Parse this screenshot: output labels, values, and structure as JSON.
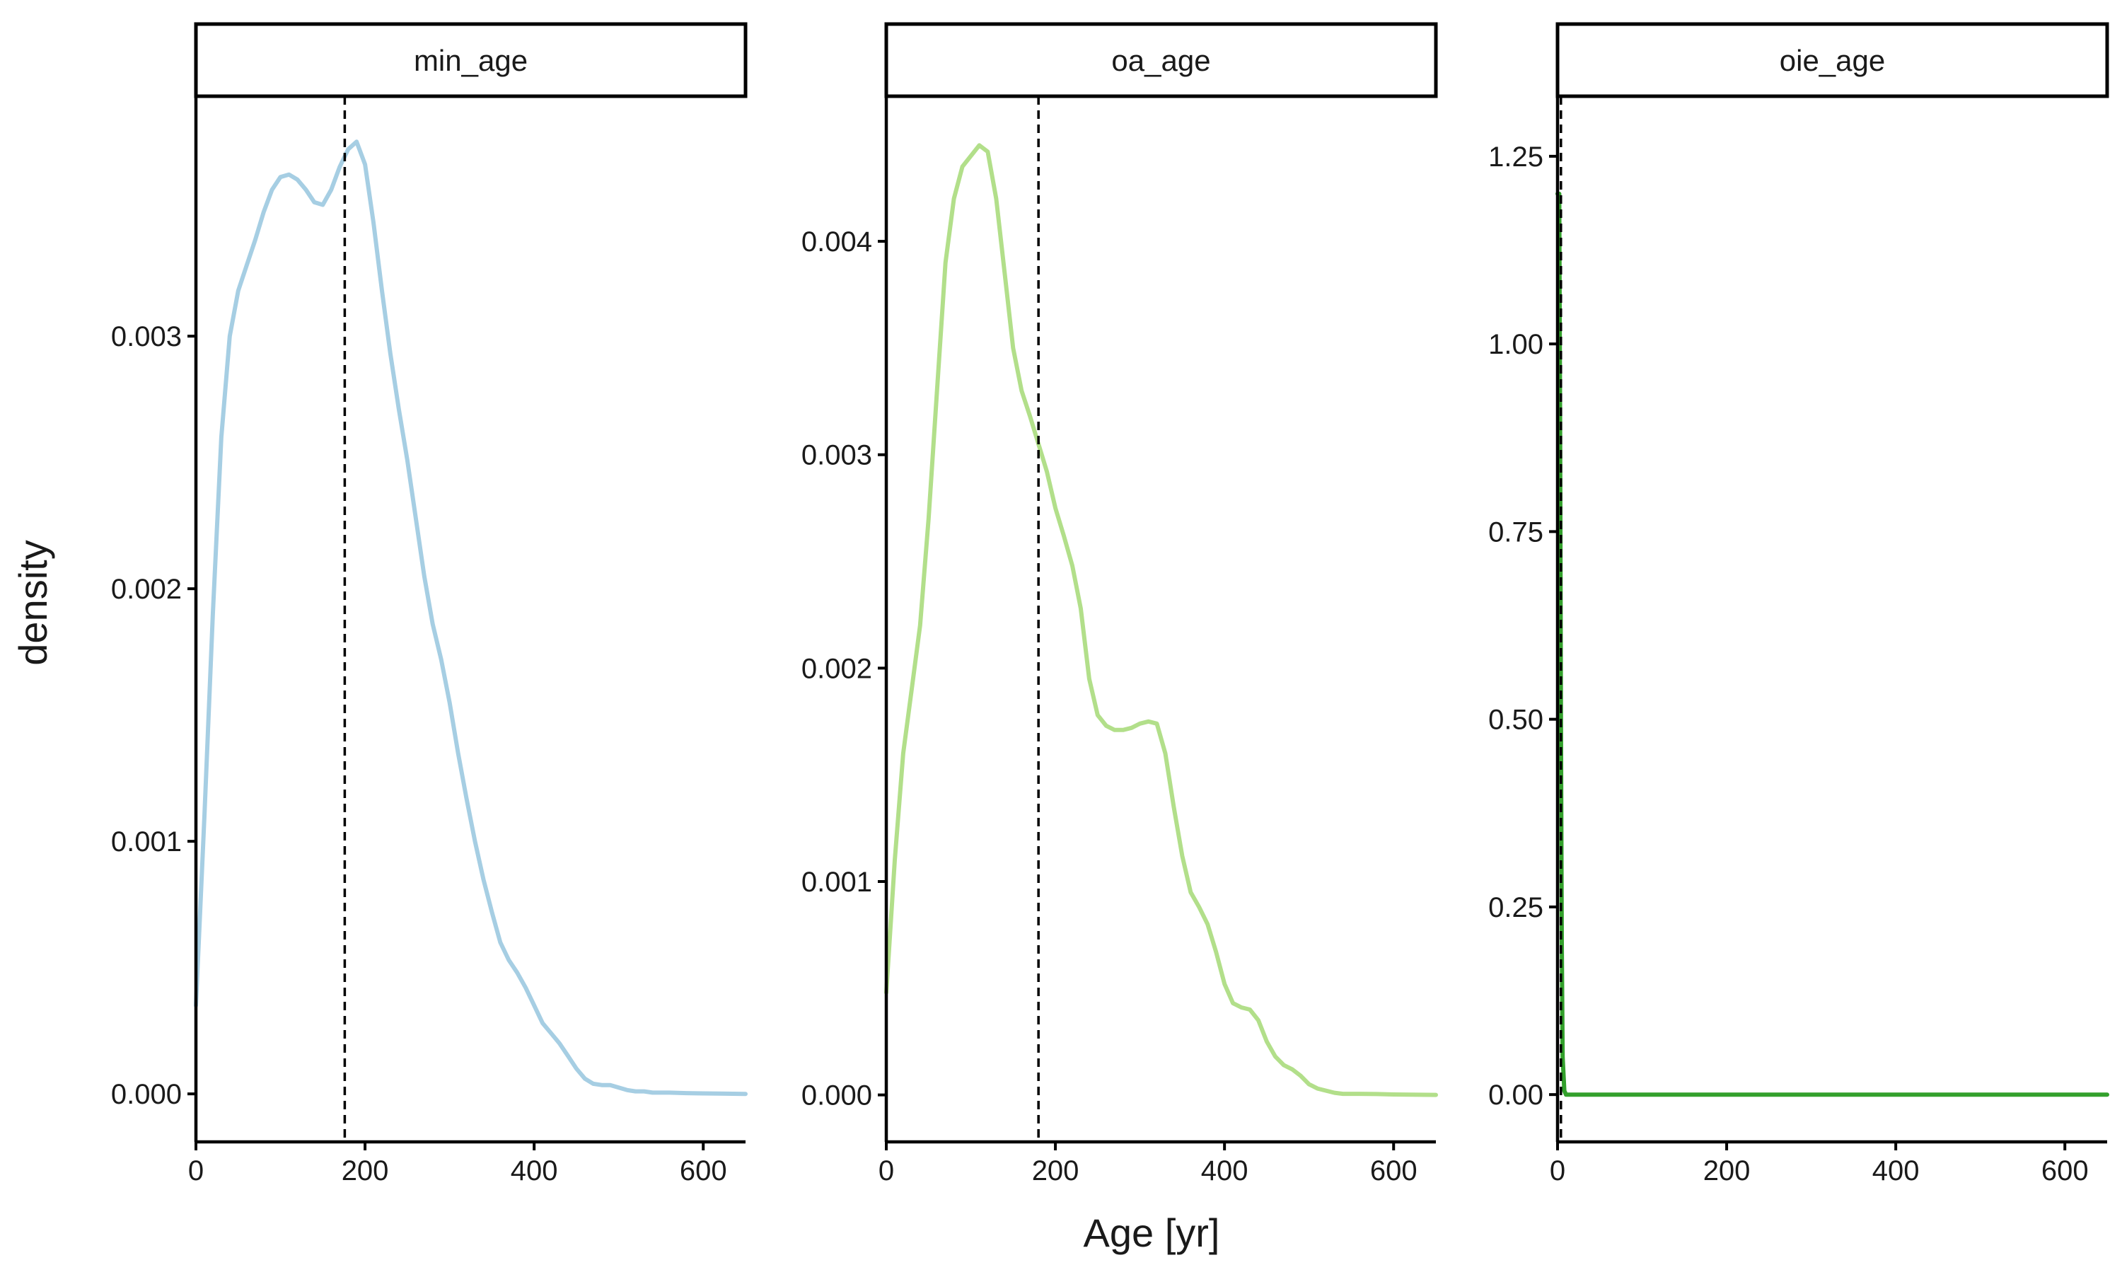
{
  "chart_data": {
    "type": "line",
    "title": "",
    "xlabel": "Age [yr]",
    "ylabel": "density",
    "grid": false,
    "legend": "none",
    "panels": [
      {
        "name": "min_age",
        "color": "#a6cee3",
        "xlim": [
          0,
          650
        ],
        "ylim": [
          -0.00019,
          0.00395
        ],
        "x_ticks": [
          0,
          200,
          400,
          600
        ],
        "x_tick_labels": [
          "0",
          "200",
          "400",
          "600"
        ],
        "y_ticks": [
          0,
          0.001,
          0.002,
          0.003
        ],
        "y_tick_labels": [
          "0.000",
          "0.001",
          "0.002",
          "0.003"
        ],
        "vline": 176,
        "series": [
          {
            "x": [
              0,
              10,
              20,
              30,
              40,
              50,
              60,
              70,
              80,
              90,
              100,
              110,
              120,
              130,
              140,
              150,
              160,
              170,
              180,
              190,
              200,
              210,
              220,
              230,
              240,
              250,
              260,
              270,
              280,
              290,
              300,
              310,
              320,
              330,
              340,
              350,
              360,
              370,
              380,
              390,
              400,
              410,
              420,
              430,
              440,
              450,
              460,
              470,
              480,
              490,
              500,
              510,
              520,
              530,
              540,
              560,
              580,
              600,
              620,
              650
            ],
            "y": [
              0.00035,
              0.0011,
              0.0019,
              0.0026,
              0.003,
              0.00318,
              0.00328,
              0.00338,
              0.00349,
              0.00358,
              0.00363,
              0.00364,
              0.00362,
              0.00358,
              0.00353,
              0.00352,
              0.00358,
              0.00367,
              0.00374,
              0.00377,
              0.00368,
              0.00345,
              0.00318,
              0.00293,
              0.00271,
              0.00251,
              0.00228,
              0.00205,
              0.00186,
              0.00172,
              0.00155,
              0.00135,
              0.00117,
              0.001,
              0.00085,
              0.00072,
              0.0006,
              0.00053,
              0.00048,
              0.00042,
              0.00035,
              0.00028,
              0.00024,
              0.0002,
              0.00015,
              0.0001,
              6e-05,
              4e-05,
              3.5e-05,
              3.5e-05,
              2.5e-05,
              1.5e-05,
              1e-05,
              1e-05,
              5e-06,
              5e-06,
              3e-06,
              2e-06,
              1e-06,
              0
            ]
          }
        ]
      },
      {
        "name": "oa_age",
        "color": "#b2df8a",
        "xlim": [
          0,
          650
        ],
        "ylim": [
          -0.00022,
          0.00468
        ],
        "x_ticks": [
          0,
          200,
          400,
          600
        ],
        "x_tick_labels": [
          "0",
          "200",
          "400",
          "600"
        ],
        "y_ticks": [
          0,
          0.001,
          0.002,
          0.003,
          0.004
        ],
        "y_tick_labels": [
          "0.000",
          "0.001",
          "0.002",
          "0.003",
          "0.004"
        ],
        "vline": 180,
        "series": [
          {
            "x": [
              0,
              10,
              20,
              30,
              40,
              50,
              60,
              70,
              80,
              90,
              100,
              110,
              120,
              130,
              140,
              150,
              160,
              170,
              180,
              190,
              200,
              210,
              220,
              230,
              240,
              250,
              260,
              270,
              280,
              290,
              300,
              310,
              320,
              330,
              340,
              350,
              360,
              370,
              380,
              390,
              400,
              410,
              420,
              430,
              440,
              450,
              460,
              470,
              480,
              490,
              500,
              510,
              520,
              530,
              540,
              560,
              580,
              600,
              620,
              650
            ],
            "y": [
              0.00048,
              0.0011,
              0.0016,
              0.0019,
              0.0022,
              0.0027,
              0.0033,
              0.0039,
              0.0042,
              0.00435,
              0.0044,
              0.00445,
              0.00442,
              0.0042,
              0.00385,
              0.0035,
              0.0033,
              0.00318,
              0.00305,
              0.00292,
              0.00275,
              0.00262,
              0.00248,
              0.00228,
              0.00195,
              0.00178,
              0.00173,
              0.00171,
              0.00171,
              0.00172,
              0.00174,
              0.00175,
              0.00174,
              0.0016,
              0.00135,
              0.00112,
              0.00095,
              0.00088,
              0.0008,
              0.00067,
              0.00052,
              0.00043,
              0.00041,
              0.0004,
              0.00035,
              0.00025,
              0.00018,
              0.00014,
              0.00012,
              9e-05,
              5e-05,
              3e-05,
              2e-05,
              1e-05,
              5e-06,
              5e-06,
              4e-06,
              2e-06,
              1e-06,
              0
            ]
          }
        ]
      },
      {
        "name": "oie_age",
        "color": "#33a02c",
        "xlim": [
          0,
          650
        ],
        "ylim": [
          -0.063,
          1.33
        ],
        "x_ticks": [
          0,
          200,
          400,
          600
        ],
        "x_tick_labels": [
          "0",
          "200",
          "400",
          "600"
        ],
        "y_ticks": [
          0,
          0.25,
          0.5,
          0.75,
          1.0,
          1.25
        ],
        "y_tick_labels": [
          "0.00",
          "0.25",
          "0.50",
          "0.75",
          "1.00",
          "1.25"
        ],
        "vline": 4,
        "series": [
          {
            "x": [
              0,
              1,
              2,
              3,
              4,
              5,
              6,
              8,
              10,
              650
            ],
            "y": [
              1.2,
              1.2,
              1.2,
              0.9,
              0.5,
              0.2,
              0.05,
              0.005,
              0,
              0
            ]
          }
        ]
      }
    ]
  }
}
